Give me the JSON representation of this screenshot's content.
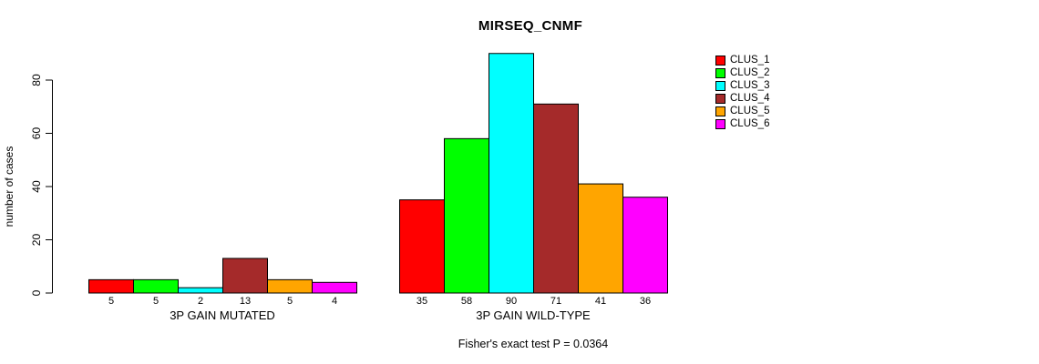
{
  "page": {
    "background_color": "#ffffff",
    "text_color": "#000000"
  },
  "chart_data": {
    "type": "bar",
    "title": "MIRSEQ_CNMF",
    "ylabel": "number of cases",
    "xlabel": "",
    "ylim": [
      0,
      90
    ],
    "yticks": [
      0,
      20,
      40,
      60,
      80
    ],
    "grid": false,
    "legend_position": "right",
    "groups": [
      {
        "label": "3P GAIN MUTATED",
        "values": [
          5,
          5,
          2,
          13,
          5,
          4
        ]
      },
      {
        "label": "3P GAIN WILD-TYPE",
        "values": [
          35,
          58,
          90,
          71,
          41,
          36
        ]
      }
    ],
    "series": [
      {
        "name": "CLUS_1",
        "color": "#ff0000"
      },
      {
        "name": "CLUS_2",
        "color": "#00ff00"
      },
      {
        "name": "CLUS_3",
        "color": "#00ffff"
      },
      {
        "name": "CLUS_4",
        "color": "#a52a2a"
      },
      {
        "name": "CLUS_5",
        "color": "#ffa500"
      },
      {
        "name": "CLUS_6",
        "color": "#ff00ff"
      }
    ],
    "annotation": "Fisher's exact test P = 0.0364"
  }
}
